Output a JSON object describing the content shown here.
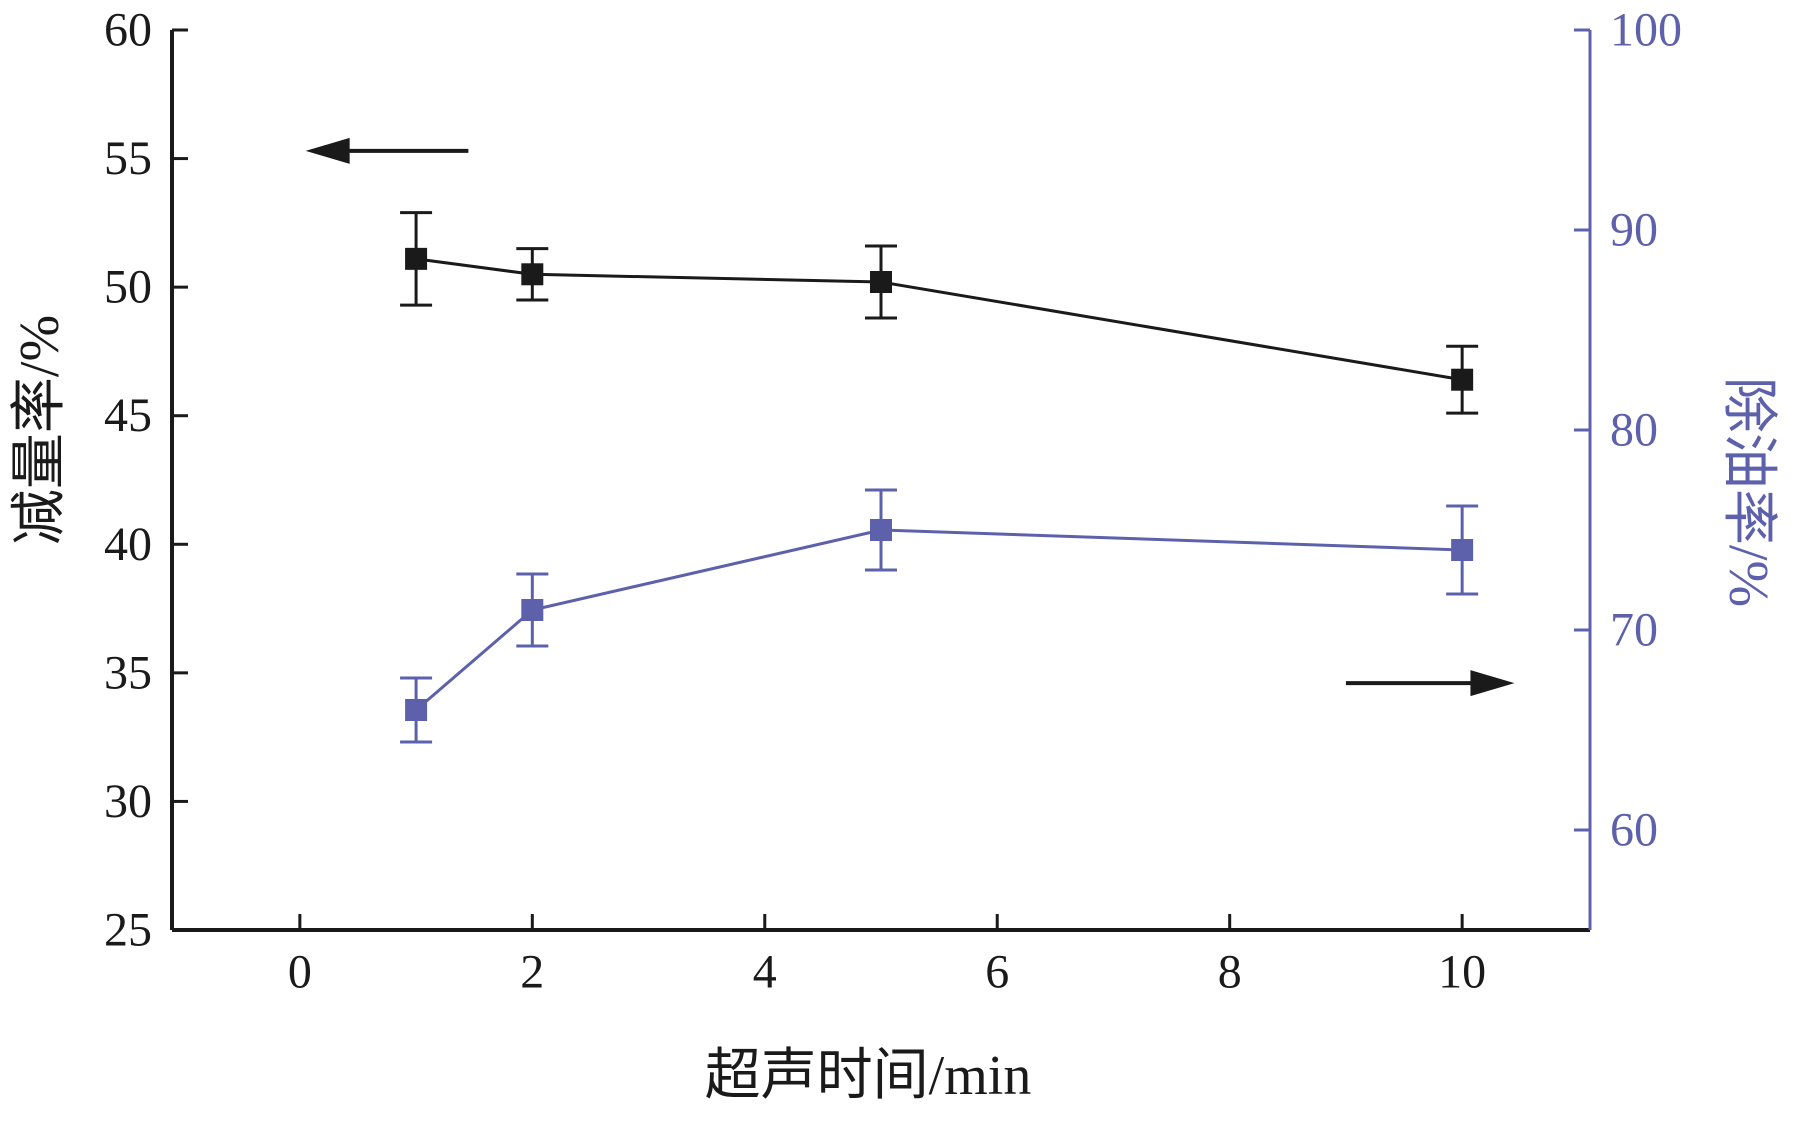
{
  "figure": {
    "background": "#ffffff"
  },
  "chart_data": {
    "type": "line",
    "title": "",
    "xlabel": "超声时间/min",
    "x_ticks": [
      0,
      2,
      4,
      6,
      8,
      10
    ],
    "xlim": [
      -1.1,
      11.1
    ],
    "grid": false,
    "legend": "none",
    "axes": {
      "left": {
        "label": "减量率/%",
        "ticks": [
          25,
          30,
          35,
          40,
          45,
          50,
          55,
          60
        ],
        "lim": [
          25,
          60
        ],
        "color": "#1a1a1a"
      },
      "right": {
        "label": "除油率/%",
        "ticks": [
          60,
          70,
          80,
          90,
          100
        ],
        "lim": [
          55,
          100
        ],
        "color": "#5d61ac"
      }
    },
    "series": [
      {
        "name": "减量率",
        "axis": "left",
        "color": "#1a1a1a",
        "marker": "square",
        "x": [
          1,
          2,
          5,
          10
        ],
        "values": [
          51.1,
          50.5,
          50.2,
          46.4
        ],
        "errors": [
          1.8,
          1.0,
          1.4,
          1.3
        ]
      },
      {
        "name": "除油率",
        "axis": "right",
        "color": "#5d61ac",
        "marker": "square",
        "x": [
          1,
          2,
          5,
          10
        ],
        "values": [
          66,
          71,
          75,
          74
        ],
        "errors": [
          1.6,
          1.8,
          2.0,
          2.2
        ]
      }
    ],
    "annotations": [
      {
        "type": "arrow",
        "points_to": "left-axis",
        "direction": "left",
        "x_tail": 1.45,
        "x_tip": 0.05,
        "y_axis": "left",
        "y": 55.3,
        "color": "#1a1a1a"
      },
      {
        "type": "arrow",
        "points_to": "right-axis",
        "direction": "right",
        "x_tail": 9.0,
        "x_tip": 10.45,
        "y_axis": "left",
        "y": 34.6,
        "color": "#1a1a1a"
      }
    ]
  }
}
